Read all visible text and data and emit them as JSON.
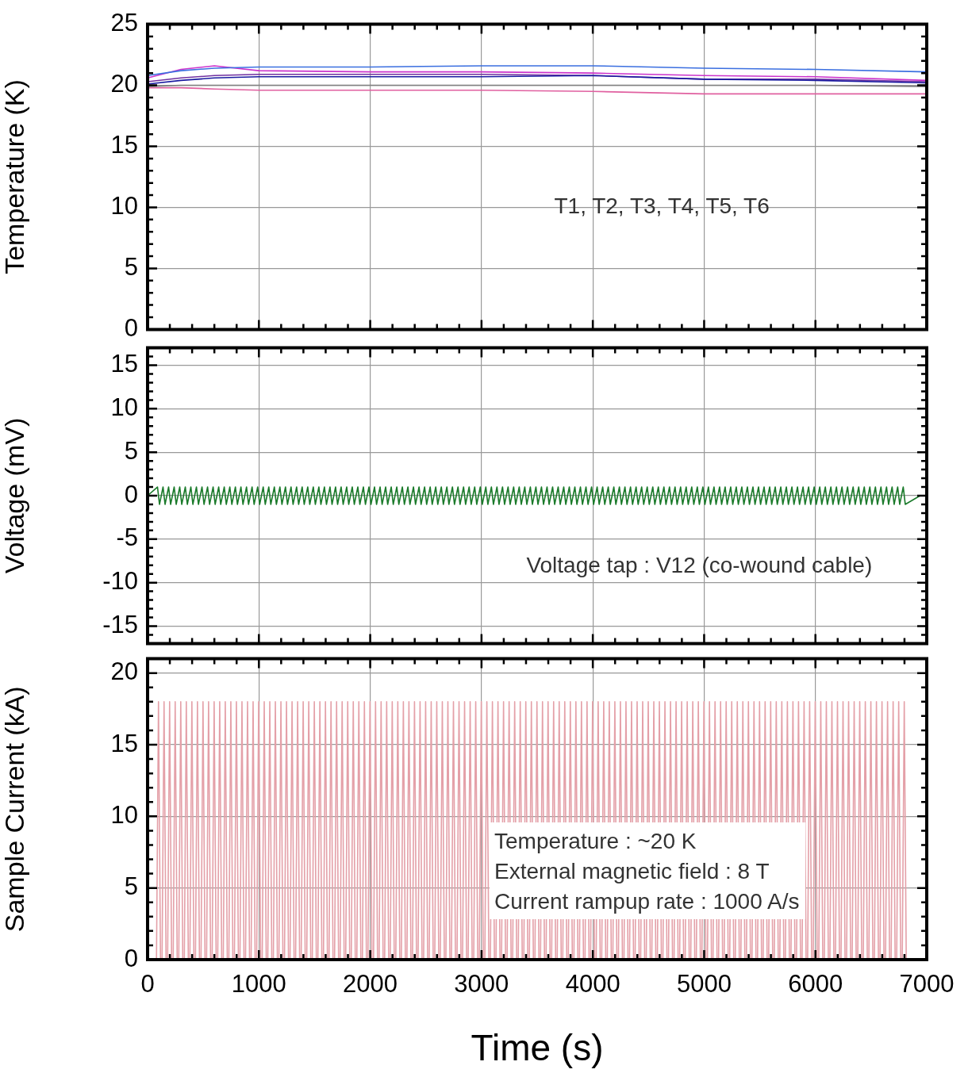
{
  "chart_data": [
    {
      "type": "line",
      "ylabel": "Temperature (K)",
      "xlim": [
        0,
        7000
      ],
      "xticks": [
        0,
        1000,
        2000,
        3000,
        4000,
        5000,
        6000,
        7000
      ],
      "ylim": [
        0,
        25
      ],
      "yticks": [
        0,
        5,
        10,
        15,
        20,
        25
      ],
      "grid": true,
      "tick_labels": "y",
      "annotations": [
        "T1, T2, T3, T4, T5, T6"
      ],
      "x": [
        0,
        300,
        600,
        1000,
        2000,
        3000,
        4000,
        5000,
        6000,
        7000
      ],
      "series": [
        {
          "color": "#3b6fe0",
          "values": [
            20.8,
            21.2,
            21.4,
            21.5,
            21.5,
            21.6,
            21.6,
            21.4,
            21.3,
            21.1
          ]
        },
        {
          "color": "#cc33cc",
          "values": [
            20.6,
            21.3,
            21.6,
            21.2,
            21.1,
            21.1,
            21.0,
            20.8,
            20.7,
            20.4
          ]
        },
        {
          "color": "#1a1aa0",
          "values": [
            20.1,
            20.4,
            20.6,
            20.7,
            20.7,
            20.7,
            20.8,
            20.5,
            20.4,
            20.2
          ]
        },
        {
          "color": "#7030a0",
          "values": [
            20.3,
            20.6,
            20.8,
            20.9,
            20.9,
            20.9,
            20.8,
            20.5,
            20.5,
            20.3
          ]
        },
        {
          "color": "#808080",
          "values": [
            19.9,
            20.0,
            20.0,
            20.0,
            20.0,
            20.0,
            20.0,
            20.0,
            20.0,
            19.9
          ]
        },
        {
          "color": "#e060a0",
          "values": [
            19.8,
            19.8,
            19.7,
            19.6,
            19.6,
            19.6,
            19.5,
            19.3,
            19.3,
            19.3
          ]
        }
      ]
    },
    {
      "type": "line",
      "ylabel": "Voltage (mV)",
      "xlim": [
        0,
        7000
      ],
      "xticks": [
        0,
        1000,
        2000,
        3000,
        4000,
        5000,
        6000,
        7000
      ],
      "ylim": [
        -17,
        17
      ],
      "yticks": [
        -15,
        -10,
        -5,
        0,
        5,
        10,
        15
      ],
      "grid": true,
      "tick_labels": "y",
      "annotations": [
        "Voltage tap : V12 (co-wound cable)"
      ],
      "x": [
        0,
        89,
        107,
        139,
        157,
        189,
        207,
        239,
        257,
        289,
        307,
        339,
        357,
        389,
        407,
        439,
        457,
        489,
        507,
        539,
        557,
        589,
        607,
        639,
        657,
        689,
        707,
        739,
        757,
        789,
        807,
        839,
        857,
        889,
        907,
        939,
        957,
        989,
        1007,
        1039,
        1057,
        1089,
        1107,
        1139,
        1157,
        1189,
        1207,
        1239,
        1257,
        1289,
        1307,
        1339,
        1357,
        1389,
        1407,
        1439,
        1457,
        1489,
        1507,
        1539,
        1557,
        1589,
        1607,
        1639,
        1657,
        1689,
        1707,
        1739,
        1757,
        1789,
        1807,
        1839,
        1857,
        1889,
        1907,
        1939,
        1957,
        1989,
        2007,
        2039,
        2057,
        2089,
        2107,
        2139,
        2157,
        2189,
        2207,
        2239,
        2257,
        2289,
        2307,
        2339,
        2357,
        2389,
        2407,
        2439,
        2457,
        2489,
        2507,
        2539,
        2557,
        2589,
        2607,
        2639,
        2657,
        2689,
        2707,
        2739,
        2757,
        2789,
        2807,
        2839,
        2857,
        2889,
        2907,
        2939,
        2957,
        2989,
        3007,
        3039,
        3057,
        3089,
        3107,
        3139,
        3157,
        3189,
        3207,
        3239,
        3257,
        3289,
        3307,
        3339,
        3357,
        3389,
        3407,
        3439,
        3457,
        3489,
        3507,
        3539,
        3557,
        3589,
        3607,
        3639,
        3657,
        3689,
        3707,
        3739,
        3757,
        3789,
        3807,
        3839,
        3857,
        3889,
        3907,
        3939,
        3957,
        3989,
        4007,
        4039,
        4057,
        4089,
        4107,
        4139,
        4157,
        4189,
        4207,
        4239,
        4257,
        4289,
        4307,
        4339,
        4357,
        4389,
        4407,
        4439,
        4457,
        4489,
        4507,
        4539,
        4557,
        4589,
        4607,
        4639,
        4657,
        4689,
        4707,
        4739,
        4757,
        4789,
        4807,
        4839,
        4857,
        4889,
        4907,
        4939,
        4957,
        4989,
        5007,
        5039,
        5057,
        5089,
        5107,
        5139,
        5157,
        5189,
        5207,
        5239,
        5257,
        5289,
        5307,
        5339,
        5357,
        5389,
        5407,
        5439,
        5457,
        5489,
        5507,
        5539,
        5557,
        5589,
        5607,
        5639,
        5657,
        5689,
        5707,
        5739,
        5757,
        5789,
        5807,
        5839,
        5857,
        5889,
        5907,
        5939,
        5957,
        5989,
        6007,
        6039,
        6057,
        6089,
        6107,
        6139,
        6157,
        6189,
        6207,
        6239,
        6257,
        6289,
        6307,
        6339,
        6357,
        6389,
        6407,
        6439,
        6457,
        6489,
        6507,
        6539,
        6557,
        6589,
        6607,
        6639,
        6657,
        6689,
        6707,
        6739,
        6757,
        6789,
        6807,
        6940
      ],
      "series": [
        {
          "color": "#1a7a2a",
          "values": [
            0,
            1,
            -1,
            1,
            -1,
            1,
            -1,
            1,
            -1,
            1,
            -1,
            1,
            -1,
            1,
            -1,
            1,
            -1,
            1,
            -1,
            1,
            -1,
            1,
            -1,
            1,
            -1,
            1,
            -1,
            1,
            -1,
            1,
            -1,
            1,
            -1,
            1,
            -1,
            1,
            -1,
            1,
            -1,
            1,
            -1,
            1,
            -1,
            1,
            -1,
            1,
            -1,
            1,
            -1,
            1,
            -1,
            1,
            -1,
            1,
            -1,
            1,
            -1,
            1,
            -1,
            1,
            -1,
            1,
            -1,
            1,
            -1,
            1,
            -1,
            1,
            -1,
            1,
            -1,
            1,
            -1,
            1,
            -1,
            1,
            -1,
            1,
            -1,
            1,
            -1,
            1,
            -1,
            1,
            -1,
            1,
            -1,
            1,
            -1,
            1,
            -1,
            1,
            -1,
            1,
            -1,
            1,
            -1,
            1,
            -1,
            1,
            -1,
            1,
            -1,
            1,
            -1,
            1,
            -1,
            1,
            -1,
            1,
            -1,
            1,
            -1,
            1,
            -1,
            1,
            -1,
            1,
            -1,
            1,
            -1,
            1,
            -1,
            1,
            -1,
            1,
            -1,
            1,
            -1,
            1,
            -1,
            1,
            -1,
            1,
            -1,
            1,
            -1,
            1,
            -1,
            1,
            -1,
            1,
            -1,
            1,
            -1,
            1,
            -1,
            1,
            -1,
            1,
            -1,
            1,
            -1,
            1,
            -1,
            1,
            -1,
            1,
            -1,
            1,
            -1,
            1,
            -1,
            1,
            -1,
            1,
            -1,
            1,
            -1,
            1,
            -1,
            1,
            -1,
            1,
            -1,
            1,
            -1,
            1,
            -1,
            1,
            -1,
            1,
            -1,
            1,
            -1,
            1,
            -1,
            1,
            -1,
            1,
            -1,
            1,
            -1,
            1,
            -1,
            1,
            -1,
            1,
            -1,
            1,
            -1,
            1,
            -1,
            1,
            -1,
            1,
            -1,
            1,
            -1,
            1,
            -1,
            1,
            -1,
            1,
            -1,
            1,
            -1,
            1,
            -1,
            1,
            -1,
            1,
            -1,
            1,
            -1,
            1,
            -1,
            1,
            -1,
            1,
            -1,
            1,
            -1,
            1,
            -1,
            1,
            -1,
            1,
            -1,
            1,
            -1,
            1,
            -1,
            1,
            -1,
            1,
            -1,
            1,
            -1,
            1,
            -1,
            1,
            -1,
            1,
            -1,
            1,
            -1,
            1,
            -1,
            1,
            -1,
            1,
            -1,
            1,
            -1,
            1,
            -1,
            1,
            -1,
            1,
            -1,
            0
          ]
        }
      ]
    },
    {
      "type": "line",
      "xlabel": "Time (s)",
      "ylabel": "Sample Current (kA)",
      "xlim": [
        0,
        7000
      ],
      "xticks": [
        0,
        1000,
        2000,
        3000,
        4000,
        5000,
        6000,
        7000
      ],
      "ylim": [
        0,
        21
      ],
      "yticks": [
        0,
        5,
        10,
        15,
        20
      ],
      "grid": true,
      "annotations": [
        "Temperature : ~20 K",
        "External magnetic field : 8 T",
        "Current rampup rate : 1000 A/s"
      ],
      "x": [
        80,
        98,
        116,
        130,
        148,
        166,
        180,
        198,
        216,
        230,
        248,
        266,
        280,
        298,
        316,
        330,
        348,
        366,
        380,
        398,
        416,
        430,
        448,
        466,
        480,
        498,
        516,
        530,
        548,
        566,
        580,
        598,
        616,
        630,
        648,
        666,
        680,
        698,
        716,
        730,
        748,
        766,
        780,
        798,
        816,
        830,
        848,
        866,
        880,
        898,
        916,
        930,
        948,
        966,
        980,
        998,
        1016,
        1030,
        1048,
        1066,
        1080,
        1098,
        1116,
        1130,
        1148,
        1166,
        1180,
        1198,
        1216,
        1230,
        1248,
        1266,
        1280,
        1298,
        1316,
        1330,
        1348,
        1366,
        1380,
        1398,
        1416,
        1430,
        1448,
        1466,
        1480,
        1498,
        1516,
        1530,
        1548,
        1566,
        1580,
        1598,
        1616,
        1630,
        1648,
        1666,
        1680,
        1698,
        1716,
        1730,
        1748,
        1766,
        1780,
        1798,
        1816,
        1830,
        1848,
        1866,
        1880,
        1898,
        1916,
        1930,
        1948,
        1966,
        1980,
        1998,
        2016,
        2030,
        2048,
        2066,
        2080,
        2098,
        2116,
        2130,
        2148,
        2166,
        2180,
        2198,
        2216,
        2230,
        2248,
        2266,
        2280,
        2298,
        2316,
        2330,
        2348,
        2366,
        2380,
        2398,
        2416,
        2430,
        2448,
        2466,
        2480,
        2498,
        2516,
        2530,
        2548,
        2566,
        2580,
        2598,
        2616,
        2630,
        2648,
        2666,
        2680,
        2698,
        2716,
        2730,
        2748,
        2766,
        2780,
        2798,
        2816,
        2830,
        2848,
        2866,
        2880,
        2898,
        2916,
        2930,
        2948,
        2966,
        2980,
        2998,
        3016,
        3030,
        3048,
        3066,
        3080,
        3098,
        3116,
        3130,
        3148,
        3166,
        3180,
        3198,
        3216,
        3230,
        3248,
        3266,
        3280,
        3298,
        3316,
        3330,
        3348,
        3366,
        3380,
        3398,
        3416,
        3430,
        3448,
        3466,
        3480,
        3498,
        3516,
        3530,
        3548,
        3566,
        3580,
        3598,
        3616,
        3630,
        3648,
        3666,
        3680,
        3698,
        3716,
        3730,
        3748,
        3766,
        3780,
        3798,
        3816,
        3830,
        3848,
        3866,
        3880,
        3898,
        3916,
        3930,
        3948,
        3966,
        3980,
        3998,
        4016,
        4030,
        4048,
        4066,
        4080,
        4098,
        4116,
        4130,
        4148,
        4166,
        4180,
        4198,
        4216,
        4230,
        4248,
        4266,
        4280,
        4298,
        4316,
        4330,
        4348,
        4366,
        4380,
        4398,
        4416,
        4430,
        4448,
        4466,
        4480,
        4498,
        4516,
        4530,
        4548,
        4566,
        4580,
        4598,
        4616,
        4630,
        4648,
        4666,
        4680,
        4698,
        4716,
        4730,
        4748,
        4766,
        4780,
        4798,
        4816,
        4830,
        4848,
        4866,
        4880,
        4898,
        4916,
        4930,
        4948,
        4966,
        4980,
        4998,
        5016,
        5030,
        5048,
        5066,
        5080,
        5098,
        5116,
        5130,
        5148,
        5166,
        5180,
        5198,
        5216,
        5230,
        5248,
        5266,
        5280,
        5298,
        5316,
        5330,
        5348,
        5366,
        5380,
        5398,
        5416,
        5430,
        5448,
        5466,
        5480,
        5498,
        5516,
        5530,
        5548,
        5566,
        5580,
        5598,
        5616,
        5630,
        5648,
        5666,
        5680,
        5698,
        5716,
        5730,
        5748,
        5766,
        5780,
        5798,
        5816,
        5830,
        5848,
        5866,
        5880,
        5898,
        5916,
        5930,
        5948,
        5966,
        5980,
        5998,
        6016,
        6030,
        6048,
        6066,
        6080,
        6098,
        6116,
        6130,
        6148,
        6166,
        6180,
        6198,
        6216,
        6230,
        6248,
        6266,
        6280,
        6298,
        6316,
        6330,
        6348,
        6366,
        6380,
        6398,
        6416,
        6430,
        6448,
        6466,
        6480,
        6498,
        6516,
        6530,
        6548,
        6566,
        6580,
        6598,
        6616,
        6630,
        6648,
        6666,
        6680,
        6698,
        6716,
        6730,
        6748,
        6766,
        6780,
        6798,
        6816
      ],
      "series": [
        {
          "color": "#e4a0a8",
          "values": [
            0,
            18,
            0,
            0,
            18,
            0,
            0,
            18,
            0,
            0,
            18,
            0,
            0,
            18,
            0,
            0,
            18,
            0,
            0,
            18,
            0,
            0,
            18,
            0,
            0,
            18,
            0,
            0,
            18,
            0,
            0,
            18,
            0,
            0,
            18,
            0,
            0,
            18,
            0,
            0,
            18,
            0,
            0,
            18,
            0,
            0,
            18,
            0,
            0,
            18,
            0,
            0,
            18,
            0,
            0,
            18,
            0,
            0,
            18,
            0,
            0,
            18,
            0,
            0,
            18,
            0,
            0,
            18,
            0,
            0,
            18,
            0,
            0,
            18,
            0,
            0,
            18,
            0,
            0,
            18,
            0,
            0,
            18,
            0,
            0,
            18,
            0,
            0,
            18,
            0,
            0,
            18,
            0,
            0,
            18,
            0,
            0,
            18,
            0,
            0,
            18,
            0,
            0,
            18,
            0,
            0,
            18,
            0,
            0,
            18,
            0,
            0,
            18,
            0,
            0,
            18,
            0,
            0,
            18,
            0,
            0,
            18,
            0,
            0,
            18,
            0,
            0,
            18,
            0,
            0,
            18,
            0,
            0,
            18,
            0,
            0,
            18,
            0,
            0,
            18,
            0,
            0,
            18,
            0,
            0,
            18,
            0,
            0,
            18,
            0,
            0,
            18,
            0,
            0,
            18,
            0,
            0,
            18,
            0,
            0,
            18,
            0,
            0,
            18,
            0,
            0,
            18,
            0,
            0,
            18,
            0,
            0,
            18,
            0,
            0,
            18,
            0,
            0,
            18,
            0,
            0,
            18,
            0,
            0,
            18,
            0,
            0,
            18,
            0,
            0,
            18,
            0,
            0,
            18,
            0,
            0,
            18,
            0,
            0,
            18,
            0,
            0,
            18,
            0,
            0,
            18,
            0,
            0,
            18,
            0,
            0,
            18,
            0,
            0,
            18,
            0,
            0,
            18,
            0,
            0,
            18,
            0,
            0,
            18,
            0,
            0,
            18,
            0,
            0,
            18,
            0,
            0,
            18,
            0,
            0,
            18,
            0,
            0,
            18,
            0,
            0,
            18,
            0,
            0,
            18,
            0,
            0,
            18,
            0,
            0,
            18,
            0,
            0,
            18,
            0,
            0,
            18,
            0,
            0,
            18,
            0,
            0,
            18,
            0,
            0,
            18,
            0,
            0,
            18,
            0,
            0,
            18,
            0,
            0,
            18,
            0,
            0,
            18,
            0,
            0,
            18,
            0,
            0,
            18,
            0,
            0,
            18,
            0,
            0,
            18,
            0,
            0,
            18,
            0,
            0,
            18,
            0,
            0,
            18,
            0,
            0,
            18,
            0,
            0,
            18,
            0,
            0,
            18,
            0,
            0,
            18,
            0,
            0,
            18,
            0,
            0,
            18,
            0,
            0,
            18,
            0,
            0,
            18,
            0,
            0,
            18,
            0,
            0,
            18,
            0,
            0,
            18,
            0,
            0,
            18,
            0,
            0,
            18,
            0,
            0,
            18,
            0,
            0,
            18,
            0,
            0,
            18,
            0,
            0,
            18,
            0,
            0,
            18,
            0,
            0,
            18,
            0,
            0,
            18,
            0,
            0,
            18,
            0,
            0,
            18,
            0,
            0,
            18,
            0,
            0,
            18,
            0,
            0,
            18,
            0,
            0,
            18,
            0,
            0,
            18,
            0,
            0,
            18,
            0,
            0,
            18,
            0,
            0,
            18,
            0,
            0,
            18,
            0,
            0,
            18,
            0,
            0,
            18,
            0,
            0,
            18,
            0,
            0,
            18,
            0
          ]
        }
      ]
    }
  ]
}
